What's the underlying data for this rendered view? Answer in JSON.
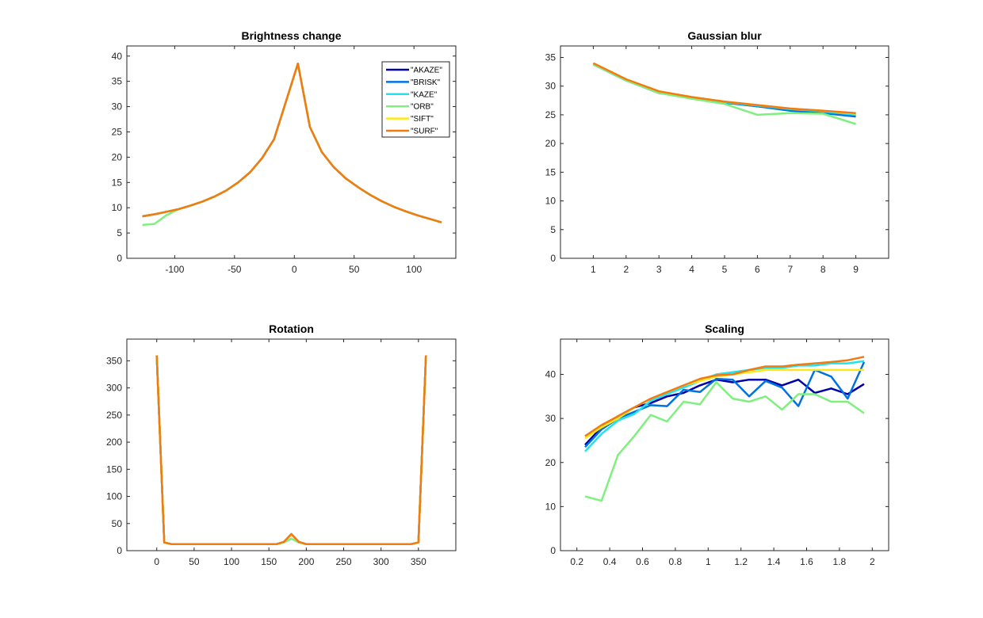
{
  "chart_data": [
    {
      "type": "line",
      "title": "Brightness change",
      "xlim": [
        -140,
        135
      ],
      "ylim": [
        0,
        42
      ],
      "xticks": [
        -100,
        -50,
        0,
        50,
        100
      ],
      "yticks": [
        0,
        5,
        10,
        15,
        20,
        25,
        30,
        35,
        40
      ],
      "legend": {
        "placement": "top-right",
        "entries": [
          "\"AKAZE\"",
          "\"BRISK\"",
          "\"KAZE\"",
          "\"ORB\"",
          "\"SIFT\"",
          "\"SURF\""
        ]
      },
      "x": [
        -127,
        -117,
        -107,
        -97,
        -87,
        -77,
        -67,
        -57,
        -47,
        -37,
        -27,
        -17,
        -7,
        3,
        13,
        23,
        33,
        43,
        53,
        63,
        73,
        83,
        93,
        103,
        113,
        123
      ],
      "series": [
        {
          "name": "\"AKAZE\"",
          "color": "#0000a8",
          "values": [
            8.3,
            8.7,
            9.2,
            9.7,
            10.4,
            11.2,
            12.2,
            13.4,
            15.0,
            17.0,
            19.8,
            23.5,
            31.0,
            38.5,
            26.0,
            21.0,
            18.0,
            15.8,
            14.1,
            12.6,
            11.3,
            10.2,
            9.3,
            8.5,
            7.8,
            7.1
          ]
        },
        {
          "name": "\"BRISK\"",
          "color": "#0072e0",
          "values": [
            8.3,
            8.7,
            9.2,
            9.7,
            10.4,
            11.2,
            12.2,
            13.4,
            15.0,
            17.0,
            19.8,
            23.5,
            31.0,
            38.5,
            26.0,
            21.0,
            18.0,
            15.8,
            14.1,
            12.6,
            11.3,
            10.2,
            9.3,
            8.5,
            7.8,
            7.1
          ]
        },
        {
          "name": "\"KAZE\"",
          "color": "#21e3f0",
          "values": [
            8.3,
            8.7,
            9.2,
            9.7,
            10.4,
            11.2,
            12.2,
            13.4,
            15.0,
            17.0,
            19.8,
            23.5,
            31.0,
            38.5,
            26.0,
            21.0,
            18.0,
            15.8,
            14.1,
            12.6,
            11.3,
            10.2,
            9.3,
            8.5,
            7.8,
            7.1
          ]
        },
        {
          "name": "\"ORB\"",
          "color": "#7ff07f",
          "values": [
            6.6,
            6.8,
            8.5,
            9.7,
            10.4,
            11.2,
            12.2,
            13.4,
            15.0,
            17.0,
            19.8,
            23.5,
            31.0,
            38.5,
            26.0,
            21.0,
            18.0,
            15.8,
            14.1,
            12.6,
            11.3,
            10.2,
            9.3,
            8.5,
            7.8,
            7.1
          ]
        },
        {
          "name": "\"SIFT\"",
          "color": "#ffe81a",
          "values": [
            8.3,
            8.7,
            9.2,
            9.7,
            10.4,
            11.2,
            12.2,
            13.4,
            15.0,
            17.0,
            19.8,
            23.5,
            31.0,
            38.5,
            26.0,
            21.0,
            18.0,
            15.8,
            14.1,
            12.6,
            11.3,
            10.2,
            9.3,
            8.5,
            7.8,
            7.1
          ]
        },
        {
          "name": "\"SURF\"",
          "color": "#f07b12",
          "values": [
            8.3,
            8.7,
            9.2,
            9.7,
            10.4,
            11.2,
            12.2,
            13.4,
            15.0,
            17.0,
            19.8,
            23.5,
            31.0,
            38.5,
            26.0,
            21.0,
            18.0,
            15.8,
            14.1,
            12.6,
            11.3,
            10.2,
            9.3,
            8.5,
            7.8,
            7.1
          ]
        }
      ]
    },
    {
      "type": "line",
      "title": "Gaussian blur",
      "xlim": [
        0,
        10
      ],
      "ylim": [
        0,
        37
      ],
      "xticks": [
        1,
        2,
        3,
        4,
        5,
        6,
        7,
        8,
        9
      ],
      "yticks": [
        0,
        5,
        10,
        15,
        20,
        25,
        30,
        35
      ],
      "x": [
        1,
        2,
        3,
        4,
        5,
        6,
        7,
        8,
        9
      ],
      "series": [
        {
          "color": "#0000a8",
          "values": [
            33.8,
            31.0,
            28.8,
            28.0,
            27.2,
            26.5,
            25.9,
            25.5,
            25.0
          ]
        },
        {
          "color": "#0072e0",
          "values": [
            33.8,
            31.0,
            28.9,
            28.0,
            27.1,
            26.5,
            25.7,
            25.3,
            24.7
          ]
        },
        {
          "color": "#21e3f0",
          "values": [
            33.8,
            31.1,
            29.0,
            28.0,
            27.2,
            26.6,
            26.0,
            25.6,
            25.0
          ]
        },
        {
          "color": "#7ff07f",
          "values": [
            33.8,
            31.0,
            28.8,
            27.8,
            26.9,
            25.0,
            25.3,
            25.2,
            23.4
          ]
        },
        {
          "color": "#ffe81a",
          "values": [
            34.0,
            31.2,
            29.1,
            28.1,
            27.3,
            26.7,
            26.1,
            25.7,
            25.2
          ]
        },
        {
          "color": "#f07b12",
          "values": [
            34.0,
            31.2,
            29.1,
            28.1,
            27.3,
            26.7,
            26.1,
            25.7,
            25.3
          ]
        }
      ]
    },
    {
      "type": "line",
      "title": "Rotation",
      "xlim": [
        -40,
        400
      ],
      "ylim": [
        0,
        390
      ],
      "xticks": [
        0,
        50,
        100,
        150,
        200,
        250,
        300,
        350
      ],
      "yticks": [
        0,
        50,
        100,
        150,
        200,
        250,
        300,
        350
      ],
      "x": [
        0,
        10,
        20,
        30,
        40,
        50,
        60,
        70,
        80,
        90,
        100,
        110,
        120,
        130,
        140,
        150,
        160,
        170,
        180,
        190,
        200,
        210,
        220,
        230,
        240,
        250,
        260,
        270,
        280,
        290,
        300,
        310,
        320,
        330,
        340,
        350,
        360
      ],
      "series": [
        {
          "color": "#0000a8",
          "values": [
            360,
            15,
            12,
            12,
            12,
            12,
            12,
            12,
            12,
            12,
            12,
            12,
            12,
            12,
            12,
            12,
            12,
            16,
            30,
            16,
            12,
            12,
            12,
            12,
            12,
            12,
            12,
            12,
            12,
            12,
            12,
            12,
            12,
            12,
            12,
            15,
            360
          ]
        },
        {
          "color": "#0072e0",
          "values": [
            360,
            15,
            12,
            12,
            12,
            12,
            12,
            12,
            12,
            12,
            12,
            12,
            12,
            12,
            12,
            12,
            12,
            16,
            30,
            16,
            12,
            12,
            12,
            12,
            12,
            12,
            12,
            12,
            12,
            12,
            12,
            12,
            12,
            12,
            12,
            15,
            360
          ]
        },
        {
          "color": "#21e3f0",
          "values": [
            360,
            15,
            12,
            12,
            12,
            12,
            12,
            12,
            12,
            12,
            12,
            12,
            12,
            12,
            12,
            12,
            12,
            16,
            30,
            16,
            12,
            12,
            12,
            12,
            12,
            12,
            12,
            12,
            12,
            12,
            12,
            12,
            12,
            12,
            12,
            15,
            360
          ]
        },
        {
          "color": "#7ff07f",
          "values": [
            360,
            15,
            12,
            12,
            12,
            12,
            12,
            12,
            12,
            12,
            12,
            12,
            12,
            12,
            12,
            12,
            12,
            15,
            22,
            15,
            12,
            12,
            12,
            12,
            12,
            12,
            12,
            12,
            12,
            12,
            12,
            12,
            12,
            12,
            12,
            15,
            360
          ]
        },
        {
          "color": "#ffe81a",
          "values": [
            360,
            15,
            12,
            12,
            12,
            12,
            12,
            12,
            12,
            12,
            12,
            12,
            12,
            12,
            12,
            12,
            12,
            16,
            30,
            16,
            12,
            12,
            12,
            12,
            12,
            12,
            12,
            12,
            12,
            12,
            12,
            12,
            12,
            12,
            12,
            15,
            360
          ]
        },
        {
          "color": "#f07b12",
          "values": [
            360,
            15,
            12,
            12,
            12,
            12,
            12,
            12,
            12,
            12,
            12,
            12,
            12,
            12,
            12,
            12,
            12,
            16,
            31,
            16,
            12,
            12,
            12,
            12,
            12,
            12,
            12,
            12,
            12,
            12,
            12,
            12,
            12,
            12,
            12,
            15,
            360
          ]
        }
      ]
    },
    {
      "type": "line",
      "title": "Scaling",
      "xlim": [
        0.1,
        2.1
      ],
      "ylim": [
        0,
        48
      ],
      "xticks": [
        0.2,
        0.4,
        0.6,
        0.8,
        1,
        1.2,
        1.4,
        1.6,
        1.8,
        2
      ],
      "yticks": [
        0,
        10,
        20,
        30,
        40
      ],
      "x": [
        0.25,
        0.35,
        0.45,
        0.55,
        0.65,
        0.75,
        0.85,
        0.95,
        1.05,
        1.15,
        1.25,
        1.35,
        1.45,
        1.55,
        1.65,
        1.75,
        1.85,
        1.95
      ],
      "series": [
        {
          "color": "#0000a8",
          "values": [
            24.0,
            28.0,
            30.5,
            32.5,
            33.5,
            35.0,
            35.8,
            37.5,
            38.8,
            38.2,
            38.8,
            38.8,
            37.5,
            38.8,
            35.8,
            36.8,
            35.5,
            37.8
          ]
        },
        {
          "color": "#0072e0",
          "values": [
            23.5,
            27.5,
            30.0,
            31.5,
            33.0,
            32.8,
            36.5,
            36.0,
            39.0,
            38.8,
            35.0,
            38.5,
            37.0,
            32.8,
            41.0,
            39.5,
            34.5,
            42.8
          ]
        },
        {
          "color": "#21e3f0",
          "values": [
            22.5,
            26.5,
            29.5,
            31.0,
            34.0,
            35.5,
            37.0,
            38.5,
            40.0,
            40.5,
            41.0,
            41.5,
            41.5,
            42.0,
            42.0,
            42.5,
            42.5,
            43.0
          ]
        },
        {
          "color": "#7ff07f",
          "values": [
            12.3,
            11.3,
            21.7,
            26.0,
            30.8,
            29.3,
            33.8,
            33.2,
            38.2,
            34.5,
            33.8,
            35.0,
            32.0,
            35.5,
            35.5,
            33.8,
            33.8,
            31.2
          ]
        },
        {
          "color": "#ffe81a",
          "values": [
            25.5,
            28.0,
            30.0,
            32.5,
            34.5,
            36.0,
            37.5,
            38.5,
            39.5,
            40.0,
            40.5,
            41.0,
            41.0,
            41.0,
            41.0,
            41.0,
            41.0,
            41.0
          ]
        },
        {
          "color": "#f07b12",
          "values": [
            26.0,
            28.5,
            30.5,
            32.5,
            34.5,
            36.0,
            37.5,
            39.0,
            39.8,
            40.0,
            41.0,
            41.8,
            41.8,
            42.2,
            42.5,
            42.8,
            43.2,
            44.0
          ]
        }
      ]
    }
  ]
}
